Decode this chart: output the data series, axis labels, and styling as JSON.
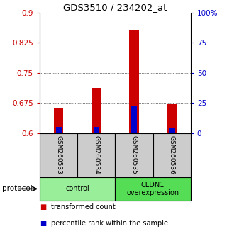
{
  "title": "GDS3510 / 234202_at",
  "samples": [
    "GSM260533",
    "GSM260534",
    "GSM260535",
    "GSM260536"
  ],
  "transformed_count": [
    0.662,
    0.713,
    0.855,
    0.673
  ],
  "percentile_rank": [
    0.615,
    0.615,
    0.668,
    0.612
  ],
  "bar_bottom": 0.6,
  "ylim": [
    0.6,
    0.9
  ],
  "yticks_left": [
    0.6,
    0.675,
    0.75,
    0.825,
    0.9
  ],
  "yticks_right": [
    0,
    25,
    50,
    75,
    100
  ],
  "yticklabels_left": [
    "0.6",
    "0.675",
    "0.75",
    "0.825",
    "0.9"
  ],
  "yticklabels_right": [
    "0",
    "25",
    "50",
    "75",
    "100%"
  ],
  "red_color": "#cc0000",
  "blue_color": "#0000cc",
  "bar_width": 0.25,
  "blue_bar_width": 0.15,
  "groups": [
    {
      "label": "control",
      "samples": [
        0,
        1
      ],
      "color": "#99ee99"
    },
    {
      "label": "CLDN1\noverexpression",
      "samples": [
        2,
        3
      ],
      "color": "#55dd55"
    }
  ],
  "protocol_label": "protocol",
  "legend_items": [
    {
      "color": "#cc0000",
      "label": "transformed count"
    },
    {
      "color": "#0000cc",
      "label": "percentile rank within the sample"
    }
  ],
  "tick_label_color_left": "#cc0000",
  "tick_label_color_right": "#0000cc",
  "sample_box_color": "#cccccc",
  "bg_color": "#ffffff"
}
